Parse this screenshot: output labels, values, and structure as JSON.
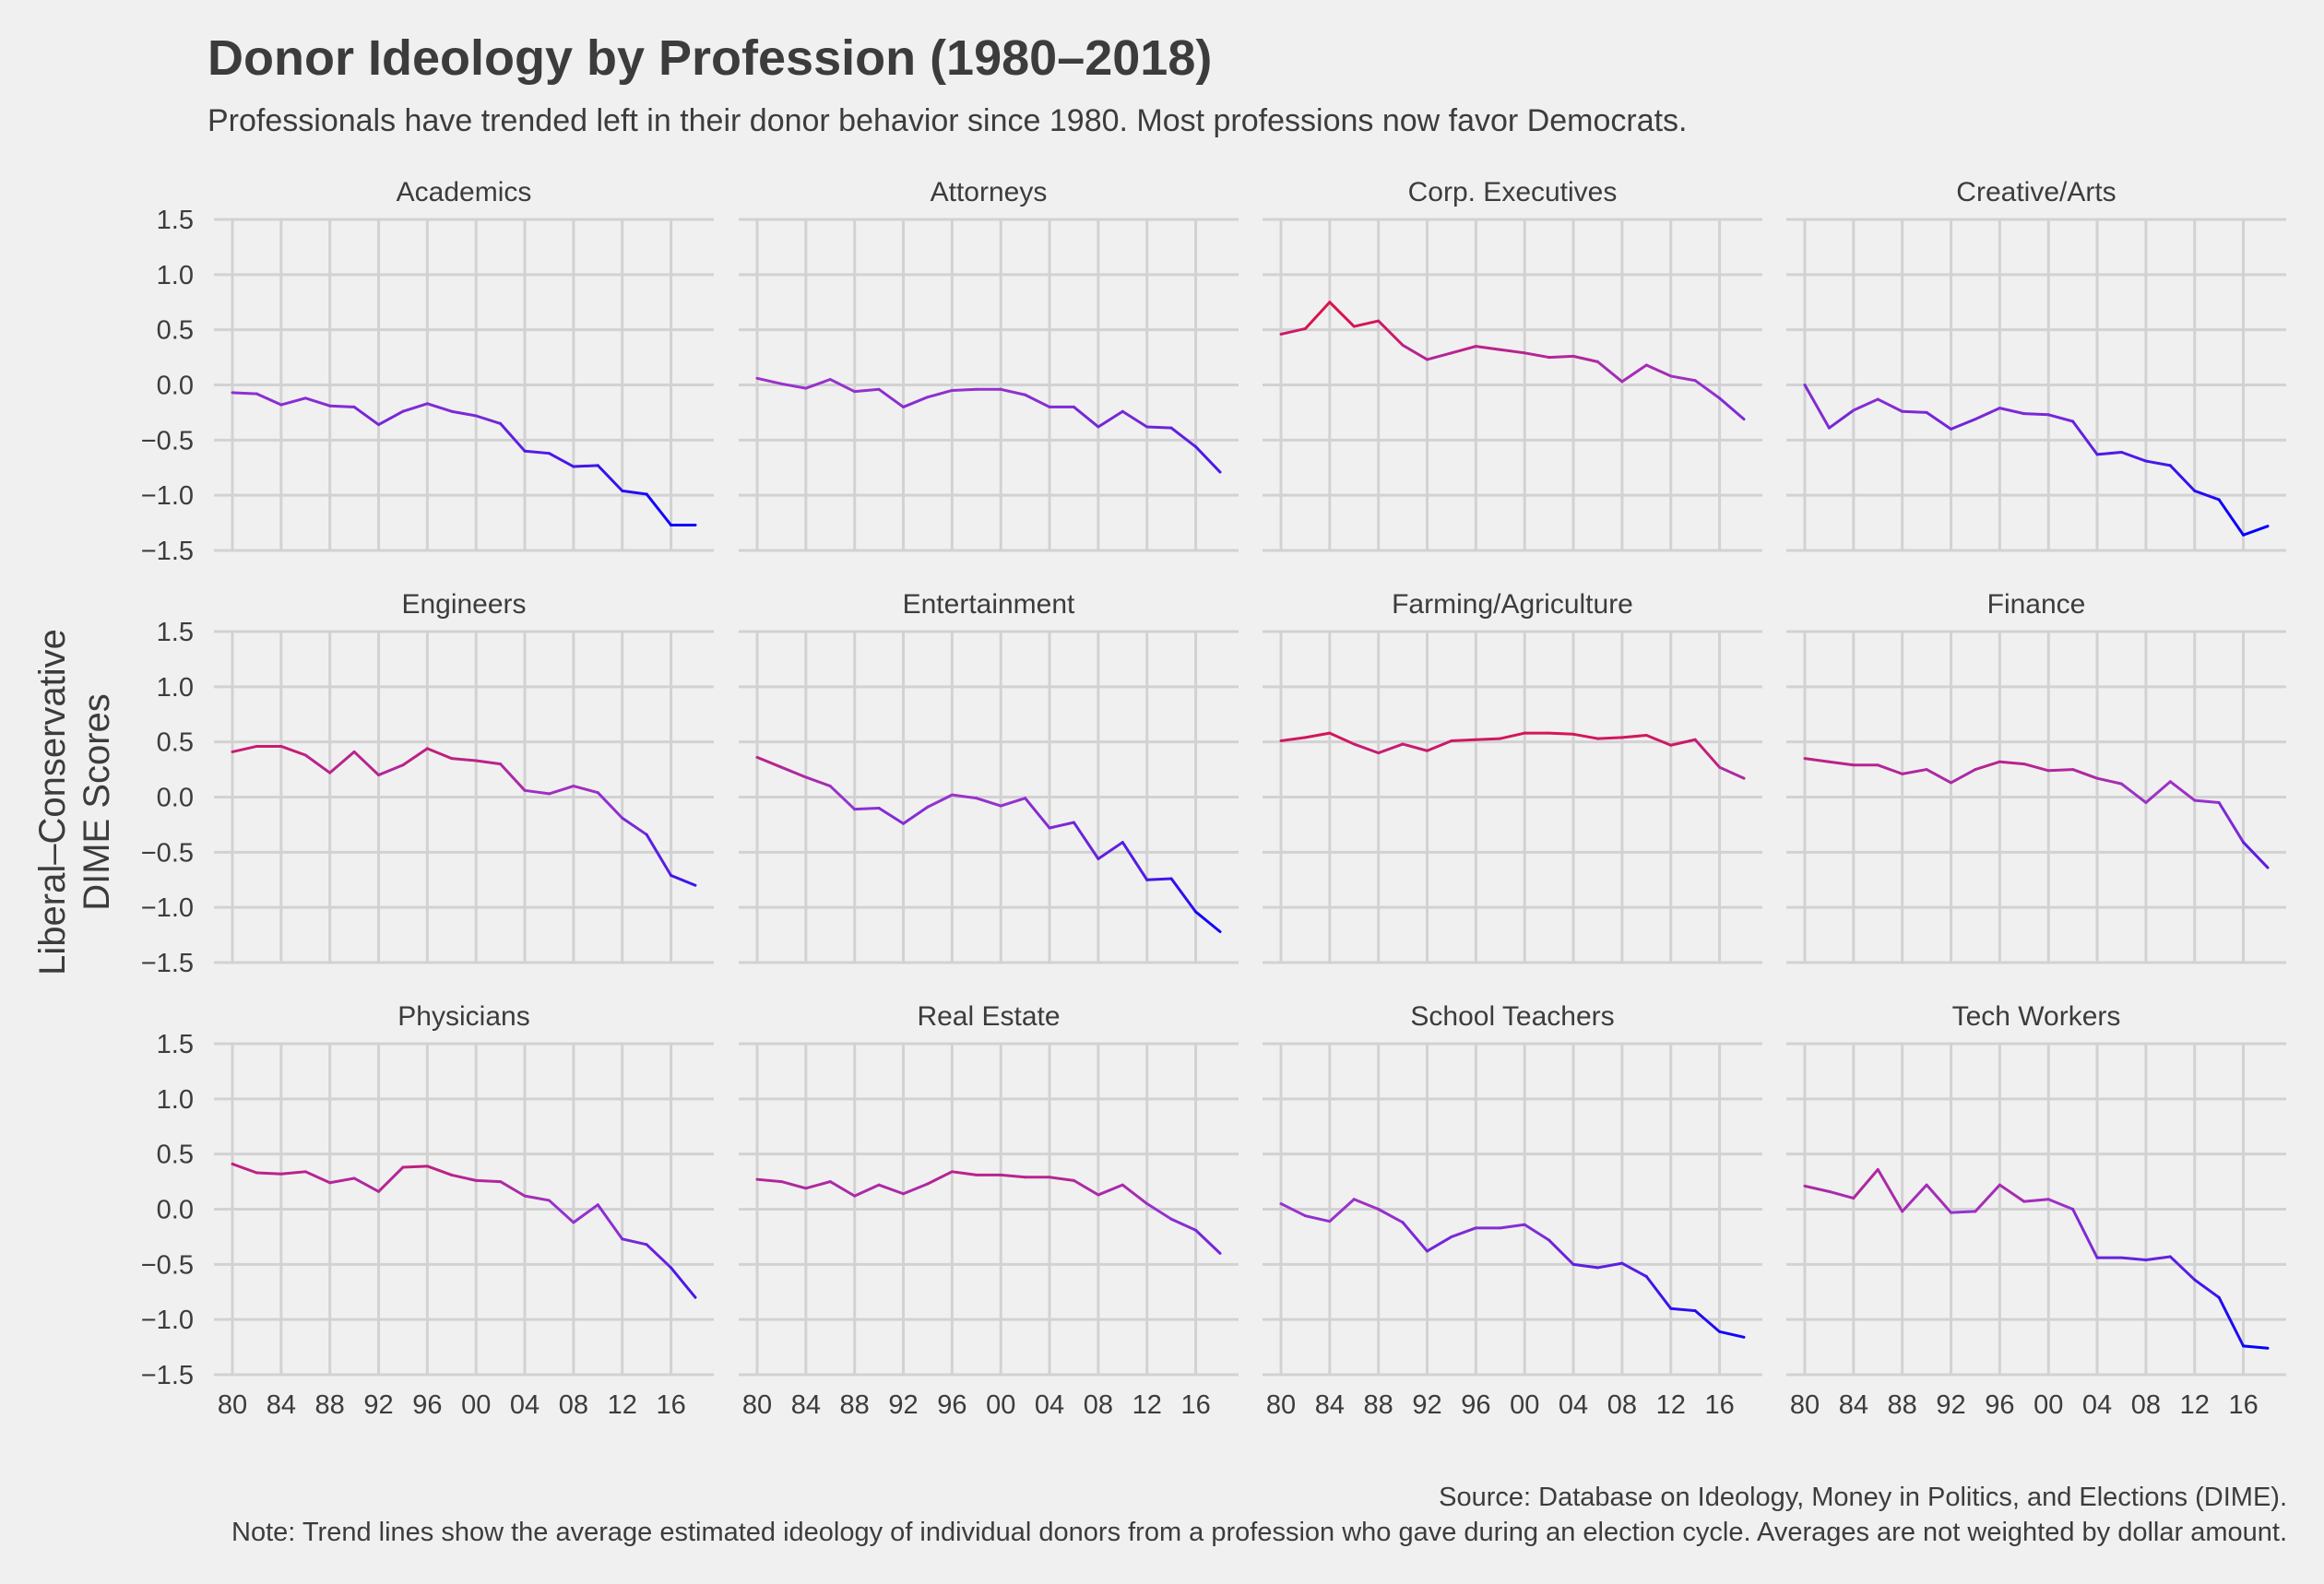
{
  "title": "Donor Ideology by Profession (1980–2018)",
  "subtitle": "Professionals have trended left in their donor behavior since 1980. Most professions now favor Democrats.",
  "caption": {
    "line1": "Source: Database on Ideology, Money in Politics, and Elections (DIME).",
    "line2": "Note: Trend lines show the average estimated ideology of individual donors from a profession who gave during an election cycle. Averages are not weighted by dollar amount."
  },
  "colors": {
    "background": "#f0f0f0",
    "grid": "#d2d2d2",
    "text": "#3c3c3c",
    "liberal": "#0000ff",
    "neutral": "#9933cc",
    "conservative": "#ff0000"
  },
  "chart_data": {
    "type": "line",
    "facets": "small-multiples 3x4",
    "ylabel": "Liberal–Conservative\nDIME Scores",
    "ylim": [
      -1.5,
      1.5
    ],
    "yticks": [
      1.5,
      1.0,
      0.5,
      0.0,
      -0.5,
      -1.0,
      -1.5
    ],
    "ytick_labels": [
      "1.5",
      "1.0",
      "0.5",
      "0.0",
      "−0.5",
      "−1.0",
      "−1.5"
    ],
    "xlim": [
      1980,
      2018
    ],
    "xticks": [
      1980,
      1984,
      1988,
      1992,
      1996,
      2000,
      2004,
      2008,
      2012,
      2016
    ],
    "xtick_labels": [
      "80",
      "84",
      "88",
      "92",
      "96",
      "00",
      "04",
      "08",
      "12",
      "16"
    ],
    "grid": true,
    "x": [
      1980,
      1982,
      1984,
      1986,
      1988,
      1990,
      1992,
      1994,
      1996,
      1998,
      2000,
      2002,
      2004,
      2006,
      2008,
      2010,
      2012,
      2014,
      2016,
      2018
    ],
    "series": [
      {
        "name": "Academics",
        "values": [
          -0.07,
          -0.08,
          -0.18,
          -0.12,
          -0.19,
          -0.2,
          -0.36,
          -0.24,
          -0.17,
          -0.24,
          -0.28,
          -0.35,
          -0.6,
          -0.62,
          -0.74,
          -0.73,
          -0.96,
          -0.99,
          -1.27,
          -1.27
        ]
      },
      {
        "name": "Attorneys",
        "values": [
          0.06,
          0.01,
          -0.03,
          0.05,
          -0.06,
          -0.04,
          -0.2,
          -0.11,
          -0.05,
          -0.04,
          -0.04,
          -0.09,
          -0.2,
          -0.2,
          -0.38,
          -0.24,
          -0.38,
          -0.39,
          -0.56,
          -0.79
        ]
      },
      {
        "name": "Corp. Executives",
        "values": [
          0.46,
          0.51,
          0.75,
          0.53,
          0.58,
          0.36,
          0.23,
          0.29,
          0.35,
          0.32,
          0.29,
          0.25,
          0.26,
          0.21,
          0.03,
          0.18,
          0.08,
          0.04,
          -0.12,
          -0.31
        ]
      },
      {
        "name": "Creative/Arts",
        "values": [
          0.0,
          -0.39,
          -0.23,
          -0.13,
          -0.24,
          -0.25,
          -0.4,
          -0.31,
          -0.21,
          -0.26,
          -0.27,
          -0.33,
          -0.63,
          -0.61,
          -0.69,
          -0.73,
          -0.96,
          -1.04,
          -1.36,
          -1.28
        ]
      },
      {
        "name": "Engineers",
        "values": [
          0.41,
          0.46,
          0.46,
          0.38,
          0.22,
          0.41,
          0.2,
          0.29,
          0.44,
          0.35,
          0.33,
          0.3,
          0.06,
          0.03,
          0.1,
          0.04,
          -0.19,
          -0.34,
          -0.71,
          -0.8
        ]
      },
      {
        "name": "Entertainment",
        "values": [
          0.36,
          0.27,
          0.18,
          0.1,
          -0.11,
          -0.1,
          -0.24,
          -0.09,
          0.02,
          -0.01,
          -0.08,
          -0.01,
          -0.28,
          -0.23,
          -0.56,
          -0.41,
          -0.75,
          -0.74,
          -1.04,
          -1.22
        ]
      },
      {
        "name": "Farming/Agriculture",
        "values": [
          0.51,
          0.54,
          0.58,
          0.48,
          0.4,
          0.48,
          0.42,
          0.51,
          0.52,
          0.53,
          0.58,
          0.58,
          0.57,
          0.53,
          0.54,
          0.56,
          0.47,
          0.52,
          0.27,
          0.17
        ]
      },
      {
        "name": "Finance",
        "values": [
          0.35,
          0.32,
          0.29,
          0.29,
          0.21,
          0.25,
          0.13,
          0.25,
          0.32,
          0.3,
          0.24,
          0.25,
          0.17,
          0.12,
          -0.05,
          0.14,
          -0.03,
          -0.05,
          -0.41,
          -0.64
        ]
      },
      {
        "name": "Physicians",
        "values": [
          0.41,
          0.33,
          0.32,
          0.34,
          0.24,
          0.28,
          0.16,
          0.38,
          0.39,
          0.31,
          0.26,
          0.25,
          0.12,
          0.08,
          -0.12,
          0.04,
          -0.27,
          -0.32,
          -0.53,
          -0.8
        ]
      },
      {
        "name": "Real Estate",
        "values": [
          0.27,
          0.25,
          0.19,
          0.25,
          0.12,
          0.22,
          0.14,
          0.23,
          0.34,
          0.31,
          0.31,
          0.29,
          0.29,
          0.26,
          0.13,
          0.22,
          0.05,
          -0.09,
          -0.19,
          -0.4
        ]
      },
      {
        "name": "School Teachers",
        "values": [
          0.05,
          -0.06,
          -0.11,
          0.09,
          0.0,
          -0.12,
          -0.38,
          -0.25,
          -0.17,
          -0.17,
          -0.14,
          -0.28,
          -0.5,
          -0.53,
          -0.49,
          -0.61,
          -0.9,
          -0.92,
          -1.11,
          -1.16
        ]
      },
      {
        "name": "Tech Workers",
        "values": [
          0.21,
          0.16,
          0.1,
          0.36,
          -0.02,
          0.22,
          -0.03,
          -0.02,
          0.22,
          0.07,
          0.09,
          0.0,
          -0.44,
          -0.44,
          -0.46,
          -0.43,
          -0.64,
          -0.8,
          -1.24,
          -1.26
        ]
      }
    ]
  }
}
